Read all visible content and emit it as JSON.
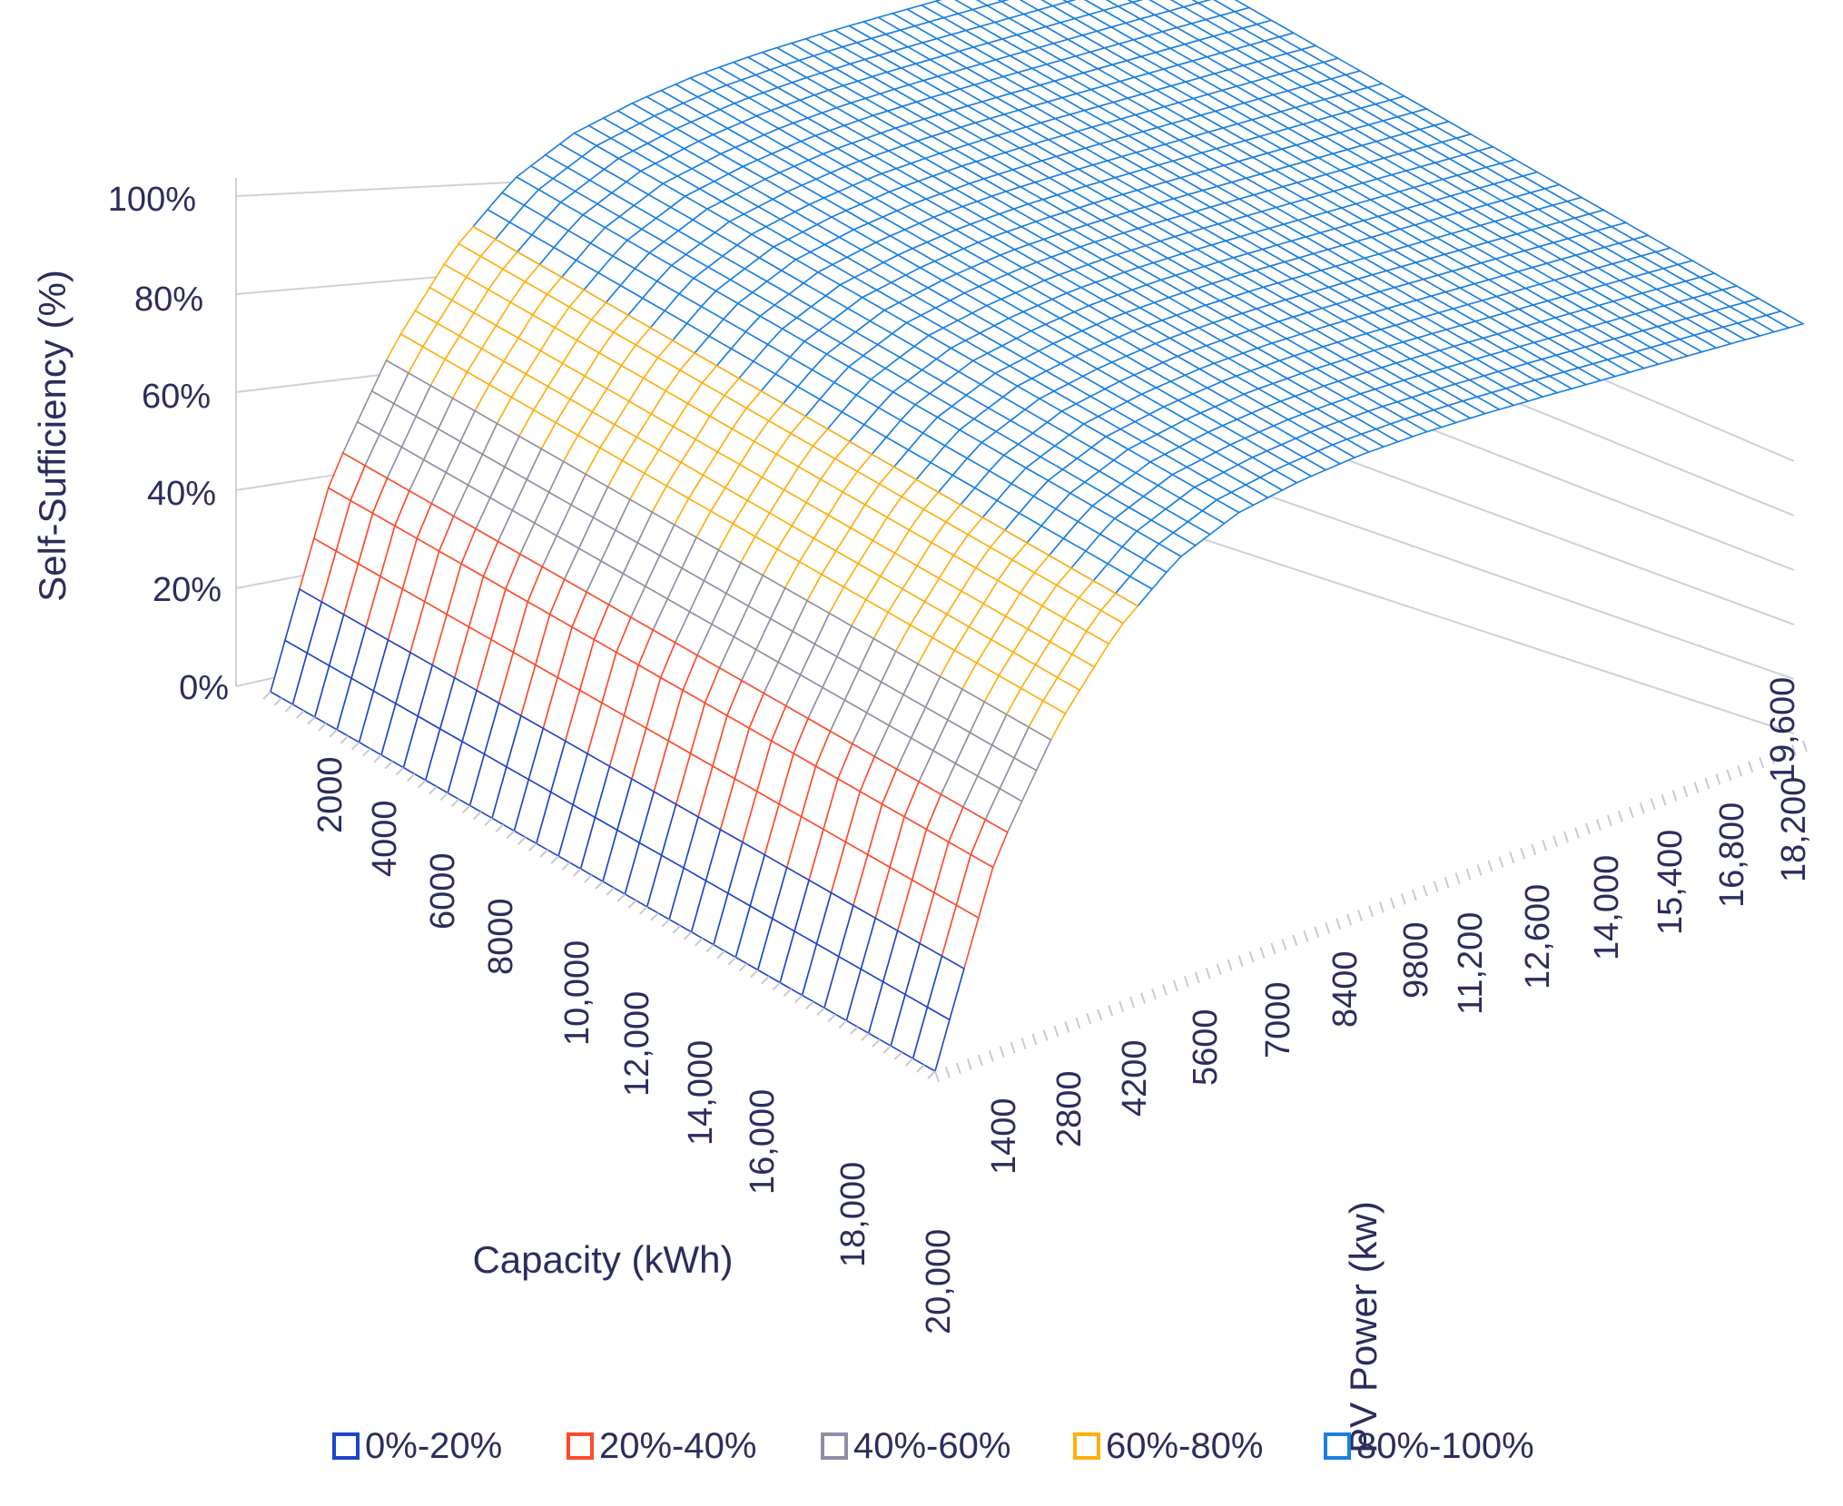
{
  "chart_data": {
    "type": "surface",
    "title": "",
    "zlabel": "Self-Sufficiency (%)",
    "xlabel": "Capacity (kWh)",
    "ylabel": "PV Power (kw)",
    "zlim": [
      0,
      100
    ],
    "z_ticks": [
      "0%",
      "20%",
      "40%",
      "60%",
      "80%",
      "100%"
    ],
    "capacity_ticks": [
      "2000",
      "4000",
      "6000",
      "8000",
      "10,000",
      "12,000",
      "14,000",
      "16,000",
      "18,000",
      "20,000"
    ],
    "pv_ticks": [
      "1400",
      "2800",
      "4200",
      "5600",
      "7000",
      "8400",
      "9800",
      "11,200",
      "12,600",
      "14,000",
      "15,400",
      "16,800",
      "18,200",
      "19,600"
    ],
    "pv_range_kw": [
      0,
      20000
    ],
    "capacity_range_kwh": [
      0,
      20000
    ],
    "surface_model": {
      "description": "Self-sufficiency rises with PV power and saturates near 100%",
      "pv_kw": [
        0,
        1400,
        2800,
        4200,
        5600,
        7000,
        8400,
        9800,
        11200,
        12600,
        14000,
        15400,
        16800,
        18200,
        19600
      ],
      "self_sufficiency_pct": [
        0,
        38,
        60,
        76,
        87,
        93,
        96,
        98,
        99,
        99.5,
        99.7,
        99.8,
        99.9,
        100,
        100
      ]
    },
    "legend": [
      {
        "label": "0%-20%",
        "color": "#1f45c9"
      },
      {
        "label": "20%-40%",
        "color": "#ff4a2a"
      },
      {
        "label": "40%-60%",
        "color": "#8e8fa6"
      },
      {
        "label": "60%-80%",
        "color": "#ffae0e"
      },
      {
        "label": "80%-100%",
        "color": "#1a7fe0"
      }
    ],
    "legend_position": "bottom"
  }
}
